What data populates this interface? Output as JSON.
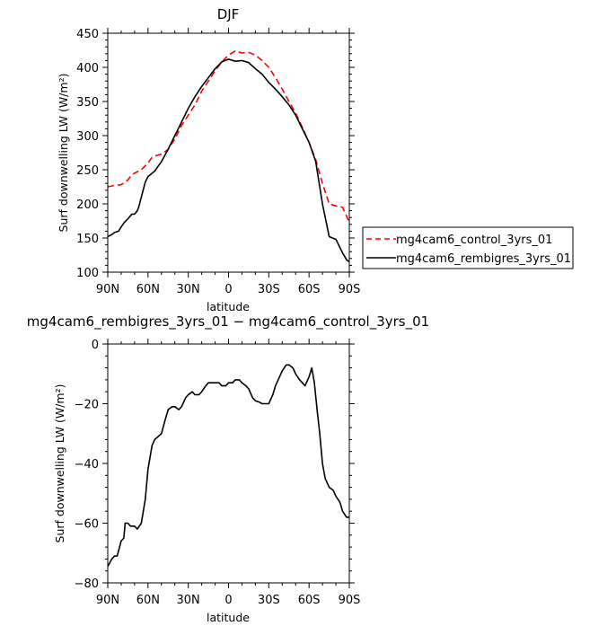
{
  "chart_data": [
    {
      "type": "line",
      "title": "DJF",
      "xlabel": "latitude",
      "ylabel": "Surf downwelling LW (W/m²)",
      "xlim": [
        90,
        -90
      ],
      "ylim": [
        100,
        450
      ],
      "xtick_values": [
        90,
        60,
        30,
        0,
        -30,
        -60,
        -90
      ],
      "xticks": [
        "90N",
        "60N",
        "30N",
        "0",
        "30S",
        "60S",
        "90S"
      ],
      "yticks": [
        100,
        150,
        200,
        250,
        300,
        350,
        400,
        450
      ],
      "legend_position": "right",
      "series": [
        {
          "name": "mg4cam6_control_3yrs_01",
          "color": "#ff0000",
          "dash": "dashed",
          "x": [
            90,
            85,
            80,
            75,
            72,
            70,
            65,
            60,
            57,
            55,
            50,
            47,
            45,
            40,
            35,
            30,
            25,
            20,
            15,
            10,
            5,
            0,
            -5,
            -10,
            -15,
            -20,
            -25,
            -30,
            -35,
            -40,
            -45,
            -50,
            -55,
            -60,
            -65,
            -70,
            -75,
            -80,
            -85,
            -90
          ],
          "values": [
            225,
            227,
            228,
            235,
            243,
            245,
            250,
            260,
            268,
            270,
            273,
            277,
            280,
            295,
            315,
            330,
            345,
            365,
            380,
            395,
            408,
            418,
            424,
            421,
            422,
            418,
            410,
            400,
            385,
            368,
            350,
            333,
            312,
            290,
            265,
            230,
            200,
            197,
            195,
            173
          ]
        },
        {
          "name": "mg4cam6_rembigres_3yrs_01",
          "color": "#000000",
          "dash": "solid",
          "x": [
            90,
            87,
            85,
            82,
            80,
            78,
            75,
            72,
            70,
            68,
            67,
            65,
            62,
            60,
            55,
            50,
            45,
            40,
            35,
            30,
            25,
            20,
            15,
            10,
            5,
            0,
            -5,
            -10,
            -15,
            -20,
            -25,
            -30,
            -35,
            -40,
            -45,
            -50,
            -55,
            -60,
            -65,
            -70,
            -75,
            -80,
            -85,
            -88,
            -90
          ],
          "values": [
            152,
            155,
            158,
            160,
            166,
            172,
            178,
            185,
            185,
            190,
            195,
            210,
            232,
            240,
            248,
            262,
            280,
            300,
            320,
            340,
            357,
            372,
            385,
            398,
            408,
            412,
            409,
            410,
            407,
            398,
            390,
            378,
            368,
            357,
            345,
            330,
            310,
            290,
            262,
            200,
            152,
            148,
            128,
            118,
            115
          ]
        }
      ]
    },
    {
      "type": "line",
      "title": "mg4cam6_rembigres_3yrs_01 − mg4cam6_control_3yrs_01",
      "xlabel": "latitude",
      "ylabel": "Surf downwelling LW (W/m²)",
      "xlim": [
        90,
        -90
      ],
      "ylim": [
        -80,
        0
      ],
      "xtick_values": [
        90,
        60,
        30,
        0,
        -30,
        -60,
        -90
      ],
      "xticks": [
        "90N",
        "60N",
        "30N",
        "0",
        "30S",
        "60S",
        "90S"
      ],
      "yticks": [
        -80,
        -60,
        -40,
        -20,
        0
      ],
      "series": [
        {
          "color": "#000000",
          "dash": "solid",
          "x": [
            90,
            87,
            85,
            83,
            80,
            78,
            77,
            75,
            73,
            70,
            68,
            65,
            62,
            60,
            57,
            55,
            50,
            47,
            45,
            42,
            40,
            37,
            35,
            32,
            30,
            27,
            25,
            22,
            20,
            17,
            15,
            12,
            10,
            7,
            5,
            2,
            0,
            -3,
            -5,
            -8,
            -10,
            -13,
            -15,
            -18,
            -20,
            -23,
            -25,
            -28,
            -30,
            -33,
            -35,
            -38,
            -40,
            -43,
            -45,
            -48,
            -50,
            -53,
            -55,
            -57,
            -60,
            -62,
            -64,
            -66,
            -68,
            -70,
            -72,
            -75,
            -78,
            -80,
            -83,
            -85,
            -88,
            -90
          ],
          "values": [
            -74.5,
            -72,
            -71,
            -71,
            -66,
            -65,
            -60,
            -60,
            -61,
            -61,
            -62,
            -60,
            -52,
            -42,
            -34,
            -32,
            -30,
            -25,
            -22,
            -21,
            -21,
            -22,
            -21,
            -18,
            -17,
            -16,
            -17,
            -17,
            -16,
            -14,
            -13,
            -13,
            -13,
            -13,
            -14,
            -14,
            -13,
            -13,
            -12,
            -12,
            -13,
            -14,
            -15,
            -18,
            -19,
            -19.5,
            -20,
            -20,
            -20,
            -17,
            -14,
            -11,
            -9,
            -7,
            -7,
            -8,
            -10,
            -12,
            -13,
            -14,
            -11,
            -8,
            -13,
            -22,
            -30,
            -40,
            -45,
            -48,
            -49,
            -51,
            -53,
            -56,
            -58,
            -58
          ]
        }
      ]
    }
  ]
}
